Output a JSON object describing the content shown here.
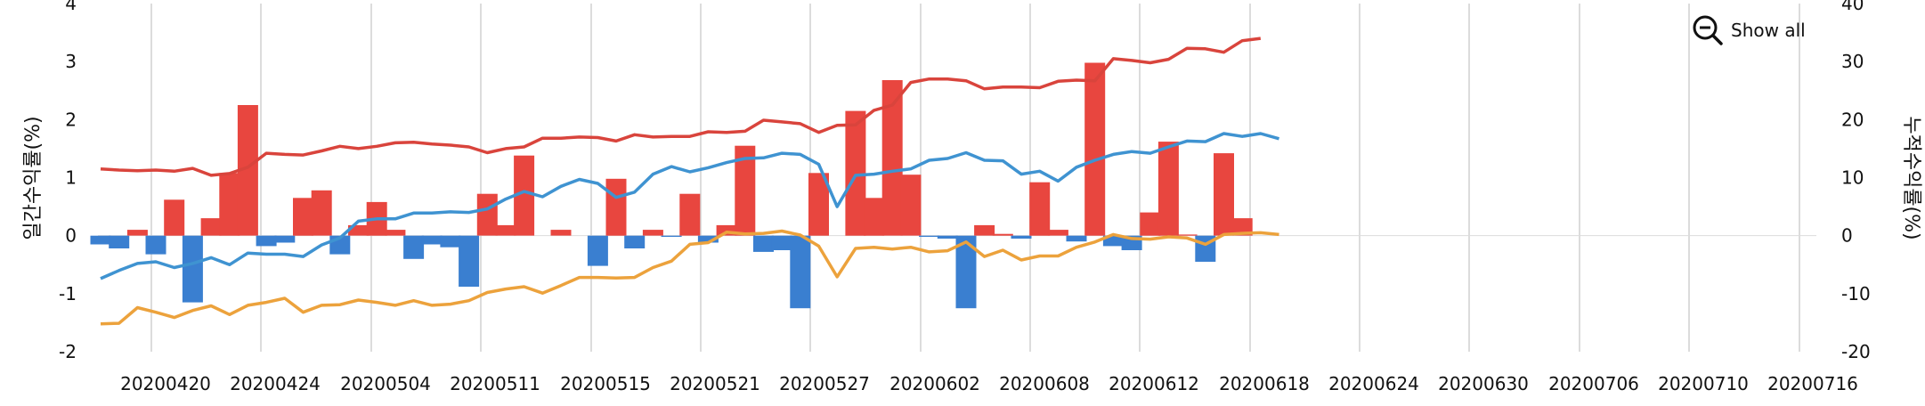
{
  "chart_data": {
    "type": "bar+line",
    "title": "",
    "y_left_label": "일간수익률(%)",
    "y_right_label": "누적수익률(%)",
    "y_left_lim": [
      -2,
      4
    ],
    "y_right_lim": [
      -20,
      40
    ],
    "y_left_ticks": [
      "-2",
      "-1",
      "0",
      "1",
      "2",
      "3",
      "4"
    ],
    "y_right_ticks": [
      "-20",
      "-10",
      "0",
      "10",
      "20",
      "30",
      "40"
    ],
    "x_tick_labels": [
      "20200420",
      "20200424",
      "20200504",
      "20200511",
      "20200515",
      "20200521",
      "20200527",
      "20200602",
      "20200608",
      "20200612",
      "20200618",
      "20200624",
      "20200630",
      "20200706",
      "20200710",
      "20200716"
    ],
    "grid_x": true,
    "positive_bar_color": "#e8463f",
    "negative_bar_color": "#3a7fd0",
    "daily_returns": [
      -0.15,
      -0.22,
      0.1,
      -0.32,
      0.62,
      -1.15,
      0.3,
      1.08,
      2.25,
      -0.18,
      -0.12,
      0.65,
      0.78,
      -0.32,
      0.18,
      0.58,
      0.1,
      -0.4,
      -0.15,
      -0.2,
      -0.88,
      0.72,
      0.18,
      1.38,
      0,
      0.1,
      0,
      -0.52,
      0.98,
      -0.22,
      0.1,
      -0.02,
      0.72,
      -0.12,
      0.18,
      1.55,
      -0.28,
      -0.25,
      -1.25,
      1.08,
      0,
      2.15,
      0.65,
      2.68,
      1.05,
      -0.02,
      -0.05,
      -1.25,
      0.18,
      0.03,
      -0.05,
      0.92,
      0.1,
      -0.1,
      2.98,
      -0.18,
      -0.25,
      0.4,
      1.62,
      0.02,
      -0.45,
      1.42,
      0.3
    ],
    "series": [
      {
        "name": "series-red",
        "color": "#d9443c",
        "axis": "right",
        "values": [
          11.5,
          11.3,
          11.2,
          11.3,
          11.1,
          11.6,
          10.4,
          10.7,
          11.8,
          14.2,
          14.0,
          13.9,
          14.6,
          15.4,
          15.0,
          15.4,
          16.0,
          16.1,
          15.8,
          15.6,
          15.3,
          14.3,
          15.0,
          15.3,
          16.8,
          16.8,
          17.0,
          16.9,
          16.3,
          17.4,
          17.0,
          17.1,
          17.1,
          17.9,
          17.8,
          18.0,
          19.9,
          19.6,
          19.3,
          17.8,
          19.0,
          19.1,
          21.6,
          22.5,
          26.4,
          27.0,
          27.0,
          26.7,
          25.3,
          25.6,
          25.6,
          25.5,
          26.6,
          26.8,
          26.7,
          30.5,
          30.2,
          29.8,
          30.4,
          32.3,
          32.2,
          31.6,
          33.6,
          34.0
        ]
      },
      {
        "name": "series-blue",
        "color": "#3f93d1",
        "axis": "right",
        "values": [
          -7.4,
          -6.0,
          -4.8,
          -4.5,
          -5.5,
          -4.8,
          -3.8,
          -5.0,
          -3.0,
          -3.2,
          -3.2,
          -3.6,
          -1.6,
          -0.4,
          2.5,
          2.9,
          2.9,
          3.9,
          3.9,
          4.1,
          4.0,
          4.6,
          6.3,
          7.6,
          6.7,
          8.5,
          9.7,
          9.0,
          6.6,
          7.5,
          10.6,
          11.9,
          11.0,
          11.7,
          12.6,
          13.3,
          13.4,
          14.2,
          14.0,
          12.3,
          5.0,
          10.4,
          10.6,
          11.1,
          11.5,
          13.0,
          13.3,
          14.3,
          13.0,
          12.9,
          10.6,
          11.1,
          9.4,
          11.8,
          13.0,
          14.0,
          14.5,
          14.2,
          15.3,
          16.3,
          16.2,
          17.6,
          17.1,
          17.6,
          16.7
        ]
      },
      {
        "name": "series-orange",
        "color": "#eca23c",
        "axis": "right",
        "values": [
          -15.2,
          -15.1,
          -12.4,
          -13.2,
          -14.1,
          -12.9,
          -12.1,
          -13.6,
          -12.0,
          -11.5,
          -10.8,
          -13.2,
          -12.0,
          -11.9,
          -11.1,
          -11.5,
          -12.0,
          -11.2,
          -12.0,
          -11.8,
          -11.2,
          -9.8,
          -9.2,
          -8.8,
          -9.9,
          -8.6,
          -7.2,
          -7.2,
          -7.3,
          -7.2,
          -5.5,
          -4.4,
          -1.5,
          -1.2,
          0.6,
          0.3,
          0.4,
          0.8,
          0.1,
          -1.8,
          -7.1,
          -2.2,
          -2.0,
          -2.3,
          -2.0,
          -2.8,
          -2.6,
          -1.1,
          -3.6,
          -2.5,
          -4.2,
          -3.5,
          -3.5,
          -2.0,
          -1.1,
          0.2,
          -0.5,
          -0.6,
          -0.2,
          -0.4,
          -1.5,
          0.2,
          0.4,
          0.5,
          0.2
        ]
      }
    ]
  },
  "controls": {
    "show_all_label": "Show all",
    "show_all_icon": "zoom-out-icon"
  }
}
